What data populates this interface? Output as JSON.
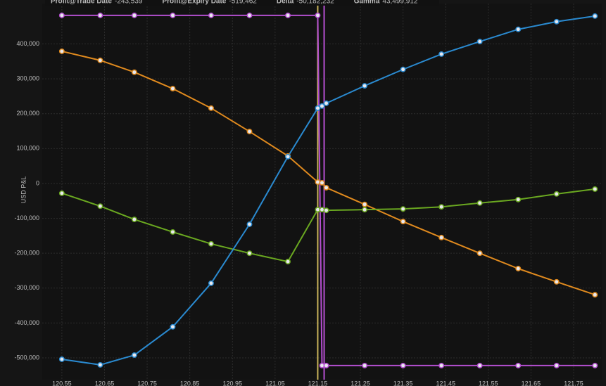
{
  "chart_data": {
    "type": "line",
    "y_label": "USD P&L",
    "x": [
      120.55,
      120.64,
      120.72,
      120.81,
      120.9,
      120.99,
      121.08,
      121.15,
      121.16,
      121.17,
      121.26,
      121.35,
      121.44,
      121.53,
      121.62,
      121.71,
      121.8
    ],
    "series": [
      {
        "name": "Profit@Trade Date",
        "legend_value": "-243,539",
        "color": "#e08a1e",
        "values": [
          379000,
          353000,
          319000,
          272000,
          216000,
          149000,
          79000,
          4000,
          2000,
          -12000,
          -60000,
          -109000,
          -155000,
          -200000,
          -244000,
          -282000,
          -319000
        ]
      },
      {
        "name": "Profit@Expiry Date",
        "legend_value": "-519,462",
        "color": "#b44fd0",
        "values": [
          482000,
          482000,
          482000,
          482000,
          482000,
          482000,
          482000,
          482000,
          -522000,
          -522000,
          -522000,
          -522000,
          -522000,
          -522000,
          -522000,
          -522000,
          -522000
        ]
      },
      {
        "name": "Delta",
        "legend_value": "-50,182,232",
        "color": "#6aa820",
        "values": [
          -28000,
          -65000,
          -103000,
          -139000,
          -173000,
          -200000,
          -224000,
          -75000,
          -75000,
          -77000,
          -75000,
          -73000,
          -67000,
          -56000,
          -46000,
          -30000,
          -16000
        ]
      },
      {
        "name": "Gamma",
        "legend_value": "43,499,912",
        "color": "#2a8ad0",
        "values": [
          -504000,
          -520000,
          -492000,
          -411000,
          -286000,
          -117000,
          77000,
          216000,
          222000,
          230000,
          280000,
          327000,
          371000,
          407000,
          442000,
          464000,
          480000
        ]
      }
    ],
    "vlines": [
      {
        "x": 121.15,
        "color": "#c9b45a"
      },
      {
        "x": 121.165,
        "color": "#b44fd0"
      }
    ],
    "xlim": [
      120.504,
      121.816
    ],
    "ylim": [
      -562500,
      516000
    ],
    "xticks": [
      {
        "value": 120.55,
        "label": "120.55"
      },
      {
        "value": 120.65,
        "label": "120.65"
      },
      {
        "value": 120.75,
        "label": "120.75"
      },
      {
        "value": 120.85,
        "label": "120.85"
      },
      {
        "value": 120.95,
        "label": "120.95"
      },
      {
        "value": 121.05,
        "label": "121.05"
      },
      {
        "value": 121.15,
        "label": "121.15"
      },
      {
        "value": 121.25,
        "label": "121.25"
      },
      {
        "value": 121.35,
        "label": "121.35"
      },
      {
        "value": 121.45,
        "label": "121.45"
      },
      {
        "value": 121.55,
        "label": "121.55"
      },
      {
        "value": 121.65,
        "label": "121.65"
      },
      {
        "value": 121.75,
        "label": "121.75"
      }
    ],
    "yticks": [
      {
        "value": -500000,
        "label": "-500,000"
      },
      {
        "value": -400000,
        "label": "-400,000"
      },
      {
        "value": -300000,
        "label": "-300,000"
      },
      {
        "value": -200000,
        "label": "-200,000"
      },
      {
        "value": -100000,
        "label": "-100,000"
      },
      0,
      {
        "value": 100000,
        "label": "100,000"
      },
      {
        "value": 200000,
        "label": "200,000"
      },
      {
        "value": 300000,
        "label": "300,000"
      },
      {
        "value": 400000,
        "label": "400,000"
      }
    ],
    "grid": true
  }
}
